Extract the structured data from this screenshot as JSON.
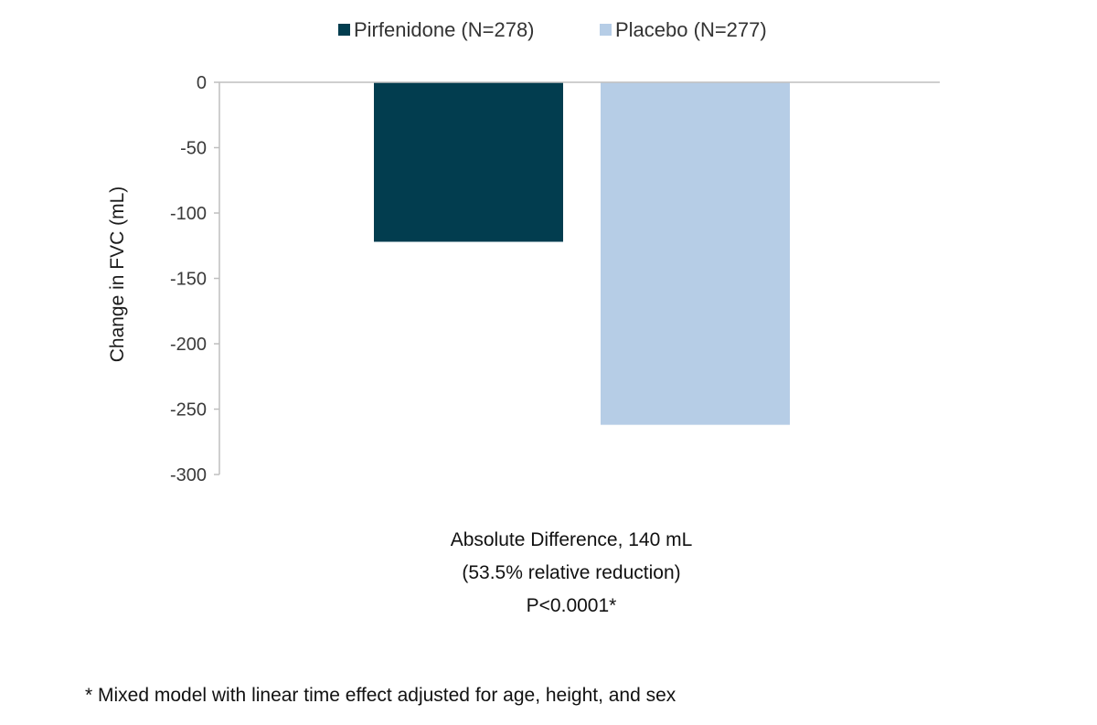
{
  "chart_data": {
    "type": "bar",
    "title": "",
    "ylabel": "Change in FVC (mL)",
    "xlabel": "",
    "ylim": [
      -300,
      0
    ],
    "yticks": [
      0,
      -50,
      -100,
      -150,
      -200,
      -250,
      -300
    ],
    "legend_position": "top-center",
    "series": [
      {
        "name": "Pirfenidone (N=278)",
        "value": -122,
        "color": "#023d4f"
      },
      {
        "name": "Placebo (N=277)",
        "value": -262,
        "color": "#b6cde6"
      }
    ]
  },
  "annotations": {
    "line1": "Absolute Difference, 140 mL",
    "line2": "(53.5% relative reduction)",
    "line3": "P<0.0001*"
  },
  "footnote": "* Mixed model with linear time effect adjusted for age, height, and sex"
}
